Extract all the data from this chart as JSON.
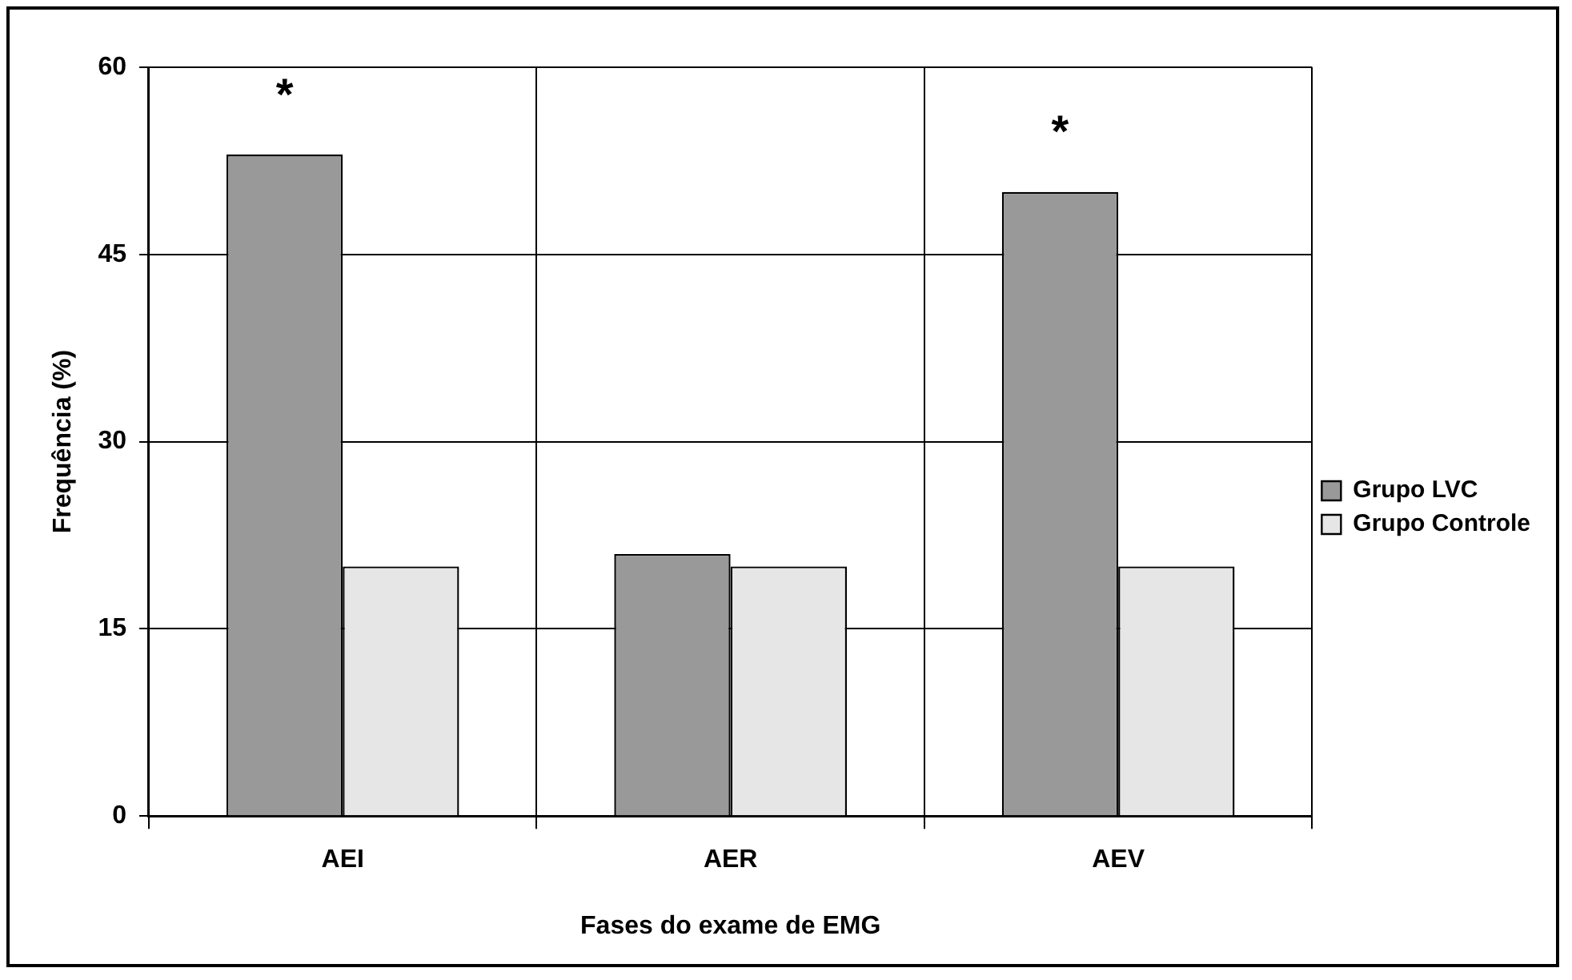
{
  "chart_data": {
    "type": "bar",
    "xlabel": "Fases do exame de EMG",
    "ylabel": "Frequência (%)",
    "categories": [
      "AEI",
      "AER",
      "AEV"
    ],
    "series": [
      {
        "name": "Grupo LVC",
        "color": "#999999",
        "values": [
          53,
          21,
          50
        ]
      },
      {
        "name": "Grupo Controle",
        "color": "#e6e6e6",
        "values": [
          20,
          20,
          20
        ]
      }
    ],
    "ylim": [
      0,
      60
    ],
    "yticks": [
      0,
      15,
      30,
      45,
      60
    ],
    "grid": true,
    "legend": "right",
    "annotations": [
      {
        "text": "*",
        "x": "AEI",
        "y": 53
      },
      {
        "text": "*",
        "x": "AEV",
        "y": 50
      }
    ]
  }
}
